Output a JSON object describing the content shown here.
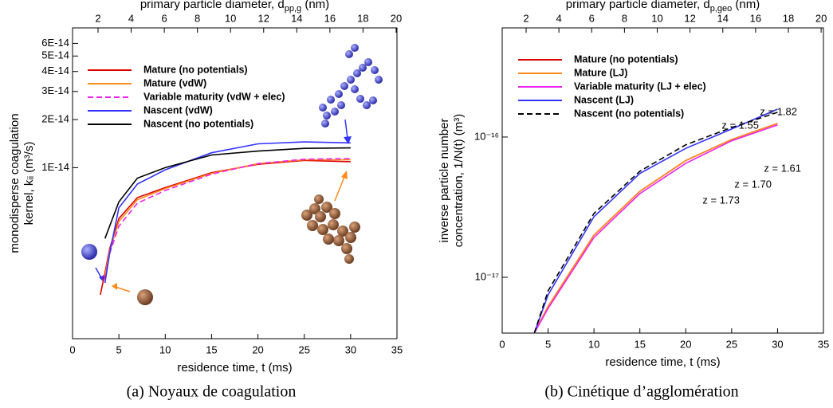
{
  "chart_data": [
    {
      "type": "line",
      "caption": "(a) Noyaux de coagulation",
      "xlabel": "residence time, t (ms)",
      "x2label": [
        "primary particle diameter, d",
        "pp,g",
        " (nm)"
      ],
      "ylabel": [
        "monodisperse coagulation",
        "kernel, kᵢᵢ (m³/s)"
      ],
      "xlim": [
        0,
        35
      ],
      "xticks": [
        0,
        5,
        10,
        15,
        20,
        25,
        30,
        35
      ],
      "x2lim": [
        0.46,
        20.05
      ],
      "x2ticks": [
        2,
        4,
        6,
        8,
        10,
        12,
        14,
        16,
        18,
        20
      ],
      "ylog": true,
      "ylim": [
        8.5e-16,
        7.5e-14
      ],
      "yticks": [
        {
          "value": 1e-14,
          "label": "1E-14"
        },
        {
          "value": 2e-14,
          "label": "2E-14"
        },
        {
          "value": 3e-14,
          "label": "3E-14"
        },
        {
          "value": 4e-14,
          "label": "4E-14"
        },
        {
          "value": 5e-14,
          "label": "5E-14"
        },
        {
          "value": 6e-14,
          "label": "6E-14"
        }
      ],
      "legend": "upper left",
      "x": [
        3,
        3.5,
        4,
        5,
        7,
        10,
        15,
        20,
        25,
        30
      ],
      "series": [
        {
          "name": "Mature (no potentials)",
          "color": "#dd0000",
          "dash": false,
          "values": [
            1.6e-15,
            2.2e-15,
            3.1e-15,
            4.8e-15,
            6.5e-15,
            7.5e-15,
            9.3e-15,
            1.05e-14,
            1.11e-14,
            1.09e-14
          ]
        },
        {
          "name": "Mature (vdW)",
          "color": "#ff8c1a",
          "dash": false,
          "values": [
            null,
            2.1e-15,
            3e-15,
            4.6e-15,
            6.3e-15,
            7.4e-15,
            9.2e-15,
            1.06e-14,
            1.12e-14,
            1.12e-14
          ]
        },
        {
          "name": "Variable maturity (vdW + elec)",
          "color": "#ee22ee",
          "dash": true,
          "values": [
            null,
            2e-15,
            2.9e-15,
            4.3e-15,
            6e-15,
            7.2e-15,
            9.1e-15,
            1.06e-14,
            1.13e-14,
            1.14e-14
          ]
        },
        {
          "name": "Nascent (vdW)",
          "color": "#3333ff",
          "dash": false,
          "values": [
            null,
            1.9e-15,
            2.9e-15,
            5.6e-15,
            7.9e-15,
            9.7e-15,
            1.24e-14,
            1.41e-14,
            1.45e-14,
            1.43e-14
          ]
        },
        {
          "name": "Nascent (no potentials)",
          "color": "#000000",
          "dash": false,
          "values": [
            null,
            3.6e-15,
            4.3e-15,
            6.1e-15,
            8.6e-15,
            1e-14,
            1.2e-14,
            1.27e-14,
            1.32e-14,
            1.33e-14
          ]
        }
      ]
    },
    {
      "type": "line",
      "caption": "(b) Cinétique d’agglomération",
      "xlabel": "residence time, t (ms)",
      "x2label": [
        "primary particle diameter, d",
        "p,geo",
        " (nm)"
      ],
      "ylabel": [
        "inverse particle number",
        "concentration, 1/N(t) (m³)"
      ],
      "xlim": [
        0,
        35
      ],
      "xticks": [
        0,
        5,
        10,
        15,
        20,
        25,
        30,
        35
      ],
      "x2lim": [
        0.54,
        20.14
      ],
      "x2ticks": [
        2,
        4,
        6,
        8,
        10,
        12,
        14,
        16,
        18,
        20
      ],
      "ylog": true,
      "ylim": [
        4e-18,
        6e-16
      ],
      "yticks": [
        {
          "value": 1e-17,
          "label": "10⁻¹⁷"
        },
        {
          "value": 1e-16,
          "label": "10⁻¹⁶"
        }
      ],
      "legend": "upper left",
      "x": [
        3.5,
        5,
        10,
        15,
        20,
        25,
        30
      ],
      "series": [
        {
          "name": "Mature (no potentials)",
          "color": "#dd0000",
          "dash": false,
          "values": [
            4e-18,
            6.2e-18,
            2e-17,
            4.1e-17,
            6.8e-17,
            9.6e-17,
            1.25e-16
          ]
        },
        {
          "name": "Mature (LJ)",
          "color": "#ff8c1a",
          "dash": false,
          "values": [
            4e-18,
            6.2e-18,
            2e-17,
            4.1e-17,
            6.8e-17,
            9.6e-17,
            1.25e-16
          ]
        },
        {
          "name": "Variable maturity (LJ + elec)",
          "color": "#ee22ee",
          "dash": false,
          "values": [
            4e-18,
            6e-18,
            1.92e-17,
            3.95e-17,
            6.5e-17,
            9.4e-17,
            1.22e-16
          ]
        },
        {
          "name": "Nascent (LJ)",
          "color": "#3333ff",
          "dash": false,
          "values": [
            4e-18,
            7.5e-18,
            2.7e-17,
            5.5e-17,
            8.3e-17,
            1.14e-16,
            1.58e-16
          ]
        },
        {
          "name": "Nascent (no potentials)",
          "color": "#000000",
          "dash": true,
          "values": [
            4e-18,
            8e-18,
            2.85e-17,
            5.7e-17,
            8.8e-17,
            1.17e-16,
            1.5e-16
          ]
        }
      ],
      "annotations": [
        {
          "text": "z = 1.82",
          "color": "#3333ff"
        },
        {
          "text": "z = 1.55",
          "color": "#000000"
        },
        {
          "text": "z = 1.61",
          "color": "#dd0000"
        },
        {
          "text": "z = 1.70",
          "color": "#ff8c1a"
        },
        {
          "text": "z = 1.73",
          "color": "#ee22ee"
        }
      ]
    }
  ]
}
